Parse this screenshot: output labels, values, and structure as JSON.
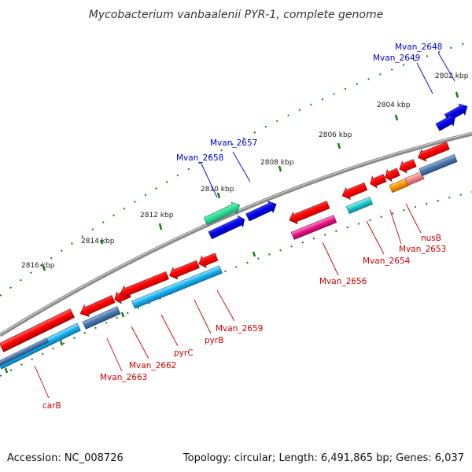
{
  "title": "Mycobacterium vanbaalenii PYR-1, complete genome",
  "accession": "Accession: NC_008726",
  "topology": "Topology: circular; Length: 6,491,865 bp; Genes: 6,037",
  "scale_labels": [
    "2816 kbp",
    "2814 kbp",
    "2812 kbp",
    "2810 kbp",
    "2808 kbp",
    "2806 kbp",
    "2804 kbp",
    "2802 kbp"
  ],
  "genes_forward": [
    "Mvan_2648",
    "Mvan_2649",
    "Mvan_2657",
    "Mvan_2658"
  ],
  "genes_reverse": [
    "carB",
    "Mvan_2663",
    "Mvan_2662",
    "pyrC",
    "pyrB",
    "Mvan_2659",
    "Mvan_2656",
    "Mvan_2654",
    "Mvan_2653",
    "nusB"
  ],
  "colors": {
    "forward_label": "#0000cc",
    "reverse_label": "#cc0000",
    "scale_ticks": "#1a7a1a",
    "backbone": "#888888"
  }
}
